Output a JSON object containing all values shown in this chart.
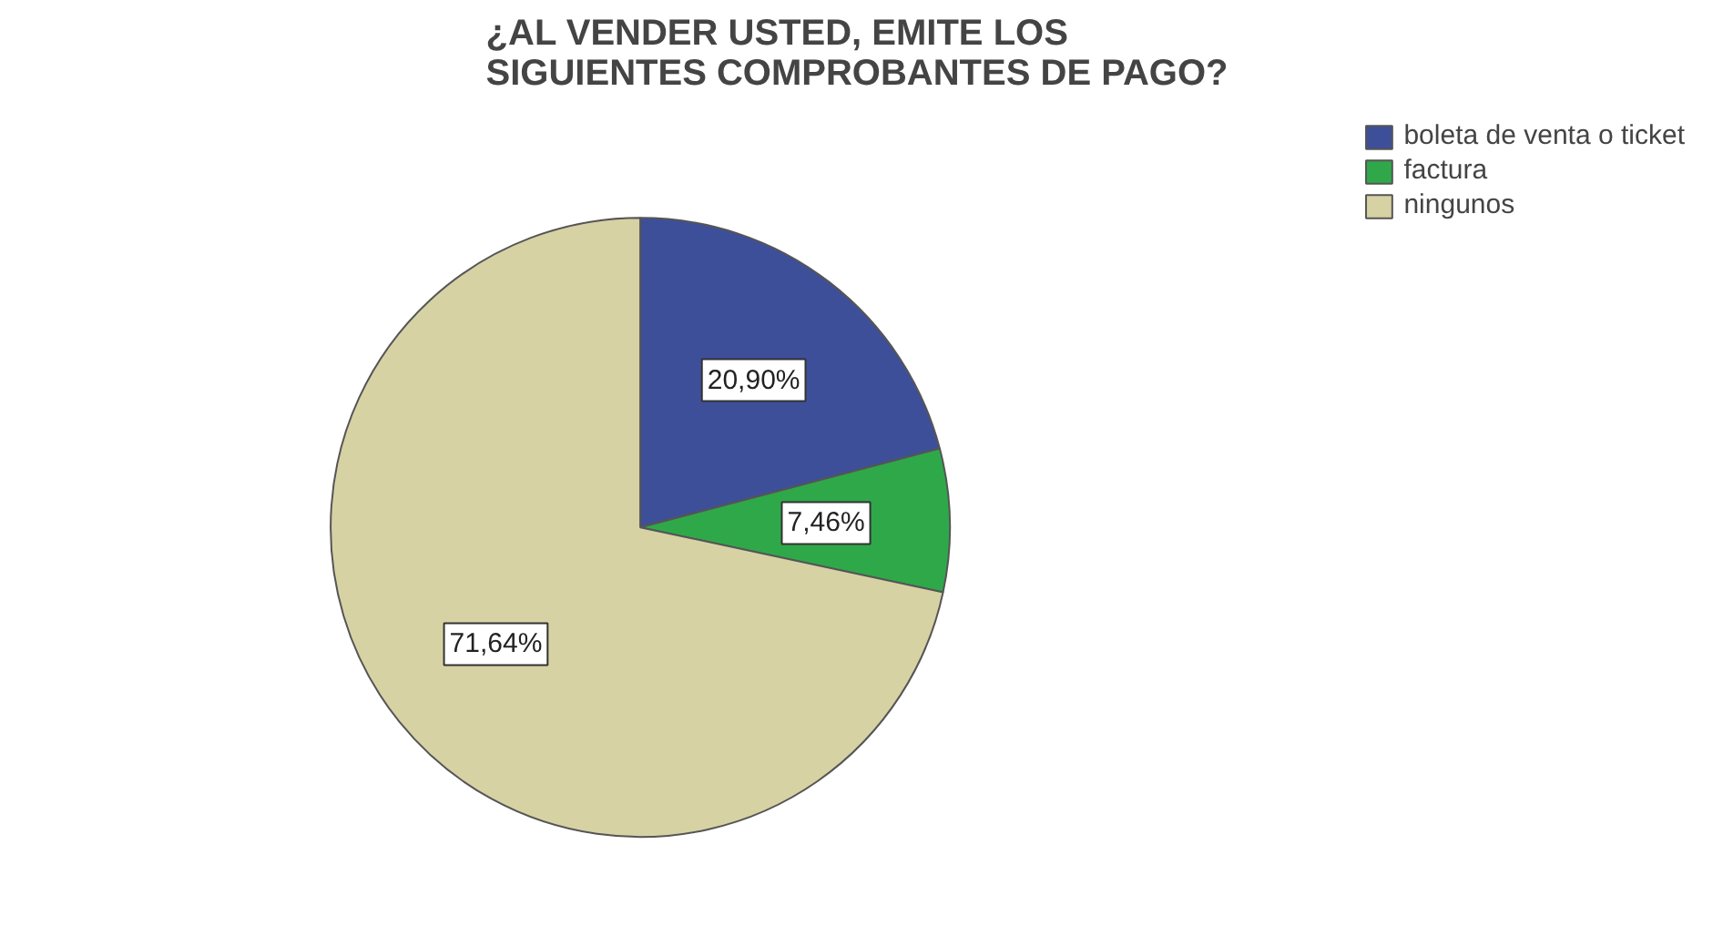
{
  "chart_data": {
    "type": "pie",
    "title": "¿AL VENDER USTED, EMITE LOS SIGUIENTES COMPROBANTES DE PAGO?",
    "categories": [
      "boleta de venta o ticket",
      "factura",
      "ningunos"
    ],
    "values": [
      20.9,
      7.46,
      71.64
    ],
    "value_labels": [
      "20,90%",
      "7,46%",
      "71,64%"
    ],
    "colors": [
      "#3e4f9a",
      "#2fa84a",
      "#d6d2a4"
    ],
    "legend": "top right"
  }
}
